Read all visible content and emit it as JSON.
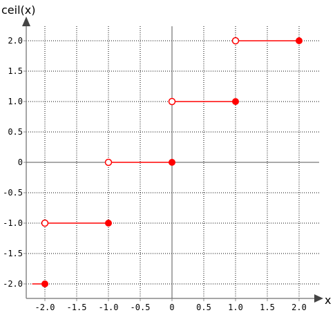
{
  "chart_data": {
    "type": "line",
    "title": "",
    "xlabel": "x",
    "ylabel": "ceil(x)",
    "xlim": [
      -2.2,
      2.2
    ],
    "ylim": [
      -2.2,
      2.2
    ],
    "grid": true,
    "x_ticks": [
      -2.0,
      -1.5,
      -1.0,
      -0.5,
      0,
      0.5,
      1.0,
      1.5,
      2.0
    ],
    "x_tick_labels": [
      "-2.0",
      "-1.5",
      "-1.0",
      "-0.5",
      "0",
      "0.5",
      "1.0",
      "1.5",
      "2.0"
    ],
    "y_ticks": [
      2.0,
      1.5,
      1.0,
      0.5,
      0,
      -0.5,
      -1.0,
      -1.5,
      -2.0
    ],
    "y_tick_labels": [
      "2.0",
      "1.5",
      "1.0",
      "0.5",
      "0",
      "-0.5",
      "-1.0",
      "-1.5",
      "-2.0"
    ],
    "segments": [
      {
        "x_start": -2.2,
        "x_end": -2.0,
        "y": -2.0,
        "start_closed": null,
        "end_closed": true
      },
      {
        "x_start": -2.0,
        "x_end": -1.0,
        "y": -1.0,
        "start_closed": false,
        "end_closed": true
      },
      {
        "x_start": -1.0,
        "x_end": 0.0,
        "y": 0.0,
        "start_closed": false,
        "end_closed": true
      },
      {
        "x_start": 0.0,
        "x_end": 1.0,
        "y": 1.0,
        "start_closed": false,
        "end_closed": true
      },
      {
        "x_start": 1.0,
        "x_end": 2.0,
        "y": 2.0,
        "start_closed": false,
        "end_closed": true
      }
    ],
    "colors": {
      "series": "#ff0000",
      "axis": "#555555",
      "grid": "#000000",
      "frame": "#888888"
    }
  }
}
